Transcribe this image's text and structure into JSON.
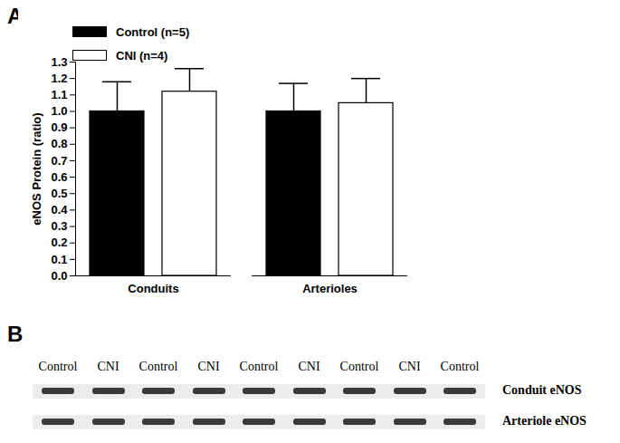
{
  "chart_data": {
    "type": "bar",
    "panel_label": "A",
    "y_label": "eNOS Protein (ratio)",
    "categories": [
      "Conduits",
      "Arterioles"
    ],
    "series": [
      {
        "name": "Control (n=5)",
        "color": "#000000",
        "values": [
          1.0,
          1.0
        ],
        "errors": [
          0.18,
          0.17
        ]
      },
      {
        "name": "CNI (n=4)",
        "color": "#ffffff",
        "values": [
          1.12,
          1.05
        ],
        "errors": [
          0.14,
          0.15
        ]
      }
    ],
    "ylim": [
      0,
      1.3
    ],
    "yticks": [
      {
        "value": 0,
        "label": "0.0"
      },
      0.1,
      0.2,
      0.3,
      0.4,
      0.5,
      0.6,
      0.7,
      0.8,
      0.9,
      {
        "value": 1,
        "label": "1.0"
      },
      1.1,
      1.2,
      1.3
    ],
    "grid": false,
    "legend": "top-left"
  },
  "blot": {
    "panel_label": "B",
    "lanes": [
      "Control",
      "CNI",
      "Control",
      "CNI",
      "Control",
      "CNI",
      "Control",
      "CNI",
      "Control"
    ],
    "rows": [
      "Conduit eNOS",
      "Arteriole eNOS"
    ]
  }
}
